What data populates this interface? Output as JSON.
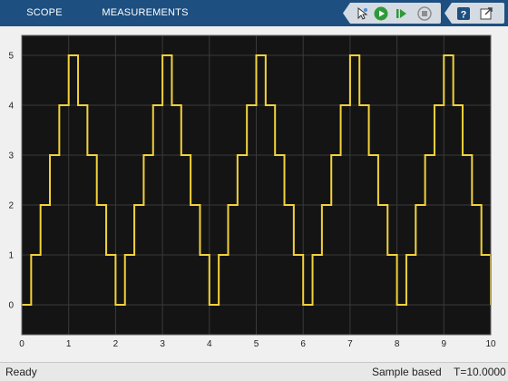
{
  "toolbar": {
    "tabs": [
      {
        "label": "SCOPE"
      },
      {
        "label": "MEASUREMENTS"
      }
    ],
    "tools": [
      {
        "icon": "pointer-highlight-icon"
      },
      {
        "icon": "run-icon"
      },
      {
        "icon": "step-forward-icon"
      },
      {
        "icon": "stop-icon"
      },
      {
        "icon": "help-icon"
      },
      {
        "icon": "undock-icon"
      }
    ]
  },
  "status": {
    "state": "Ready",
    "mode": "Sample based",
    "time": "T=10.0000"
  },
  "colors": {
    "trace": "#f2d23a",
    "plot_bg": "#141414",
    "grid": "#3a3a3a",
    "toolbar_bg": "#1d4f80"
  },
  "chart_data": {
    "type": "line",
    "step": true,
    "xlim": [
      0,
      10
    ],
    "ylim": [
      -0.6,
      5.4
    ],
    "xticks": [
      "0",
      "1",
      "2",
      "3",
      "4",
      "5",
      "6",
      "7",
      "8",
      "9",
      "10"
    ],
    "yticks": [
      "0",
      "1",
      "2",
      "3",
      "4",
      "5"
    ],
    "grid": true,
    "series": [
      {
        "x": [
          0,
          0.2,
          0.4,
          0.6,
          0.8,
          1.0,
          1.2,
          1.4,
          1.6,
          1.8,
          2.0,
          2.2,
          2.4,
          2.6,
          2.8,
          3.0,
          3.2,
          3.4,
          3.6,
          3.8,
          4.0,
          4.2,
          4.4,
          4.6,
          4.8,
          5.0,
          5.2,
          5.4,
          5.6,
          5.8,
          6.0,
          6.2,
          6.4,
          6.6,
          6.8,
          7.0,
          7.2,
          7.4,
          7.6,
          7.8,
          8.0,
          8.2,
          8.4,
          8.6,
          8.8,
          9.0,
          9.2,
          9.4,
          9.6,
          9.8,
          10.0
        ],
        "y": [
          0,
          1,
          2,
          3,
          4,
          5,
          4,
          3,
          2,
          1,
          0,
          1,
          2,
          3,
          4,
          5,
          4,
          3,
          2,
          1,
          0,
          1,
          2,
          3,
          4,
          5,
          4,
          3,
          2,
          1,
          0,
          1,
          2,
          3,
          4,
          5,
          4,
          3,
          2,
          1,
          0,
          1,
          2,
          3,
          4,
          5,
          4,
          3,
          2,
          1,
          0
        ]
      }
    ]
  }
}
